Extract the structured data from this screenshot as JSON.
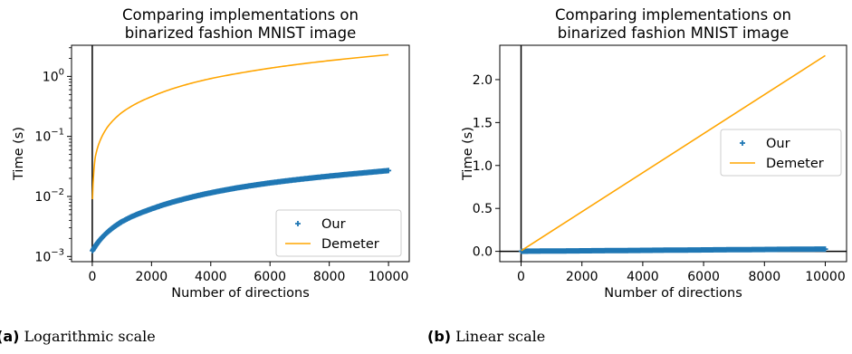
{
  "chart_data": [
    {
      "type": "scatter",
      "title_lines": [
        "Comparing implementations on",
        "binarized fashion MNIST image"
      ],
      "xlabel": "Number of directions",
      "ylabel": "Time (s)",
      "yscale": "log",
      "xlim": [
        -700,
        10700
      ],
      "ylim": [
        0.00082,
        3.3
      ],
      "xticks": [
        0,
        2000,
        4000,
        6000,
        8000,
        10000
      ],
      "xtick_labels": [
        "0",
        "2000",
        "4000",
        "6000",
        "8000",
        "10000"
      ],
      "yticks": [
        0.001,
        0.01,
        0.1,
        1
      ],
      "ytick_labels": [
        "10",
        "10",
        "10",
        "10"
      ],
      "ytick_exponents": [
        "−3",
        "−2",
        "−1",
        "0"
      ],
      "vline_x": 0,
      "grid": false,
      "legend_position": "lower-right",
      "series": [
        {
          "name": "Our",
          "marker": "+",
          "color": "#1f77b4",
          "x": [
            10,
            500,
            1000,
            2000,
            3000,
            4000,
            5000,
            6000,
            7000,
            8000,
            9000,
            10000
          ],
          "y": [
            0.00125,
            0.0025,
            0.0038,
            0.0062,
            0.0088,
            0.0115,
            0.0142,
            0.0168,
            0.0193,
            0.0218,
            0.0243,
            0.027
          ]
        },
        {
          "name": "Demeter",
          "marker": "line",
          "color": "#ffa500",
          "x": [
            10,
            50,
            100,
            200,
            500,
            1000,
            2000,
            3000,
            4000,
            5000,
            6000,
            7000,
            8000,
            9000,
            10000
          ],
          "y": [
            0.009,
            0.025,
            0.045,
            0.07,
            0.14,
            0.25,
            0.46,
            0.69,
            0.92,
            1.14,
            1.37,
            1.6,
            1.83,
            2.06,
            2.3
          ]
        }
      ]
    },
    {
      "type": "scatter",
      "title_lines": [
        "Comparing implementations on",
        "binarized fashion MNIST image"
      ],
      "xlabel": "Number of directions",
      "ylabel": "Time (s)",
      "yscale": "linear",
      "xlim": [
        -700,
        10700
      ],
      "ylim": [
        -0.12,
        2.4
      ],
      "xticks": [
        0,
        2000,
        4000,
        6000,
        8000,
        10000
      ],
      "xtick_labels": [
        "0",
        "2000",
        "4000",
        "6000",
        "8000",
        "10000"
      ],
      "yticks": [
        0,
        0.5,
        1,
        1.5,
        2
      ],
      "ytick_labels": [
        "0.0",
        "0.5",
        "1.0",
        "1.5",
        "2.0"
      ],
      "vline_x": 0,
      "hline_y": 0,
      "grid": false,
      "legend_position": "center-right",
      "series": [
        {
          "name": "Our",
          "marker": "+",
          "color": "#1f77b4",
          "x": [
            10,
            500,
            1000,
            2000,
            3000,
            4000,
            5000,
            6000,
            7000,
            8000,
            9000,
            10000
          ],
          "y": [
            0.00125,
            0.0025,
            0.0038,
            0.0062,
            0.0088,
            0.0115,
            0.0142,
            0.0168,
            0.0193,
            0.0218,
            0.0243,
            0.027
          ]
        },
        {
          "name": "Demeter",
          "marker": "line",
          "color": "#ffa500",
          "x": [
            10,
            10000
          ],
          "y": [
            0.009,
            2.28
          ]
        }
      ]
    }
  ],
  "captions": [
    {
      "label": "(a)",
      "text": "Logarithmic scale"
    },
    {
      "label": "(b)",
      "text": "Linear scale"
    }
  ]
}
